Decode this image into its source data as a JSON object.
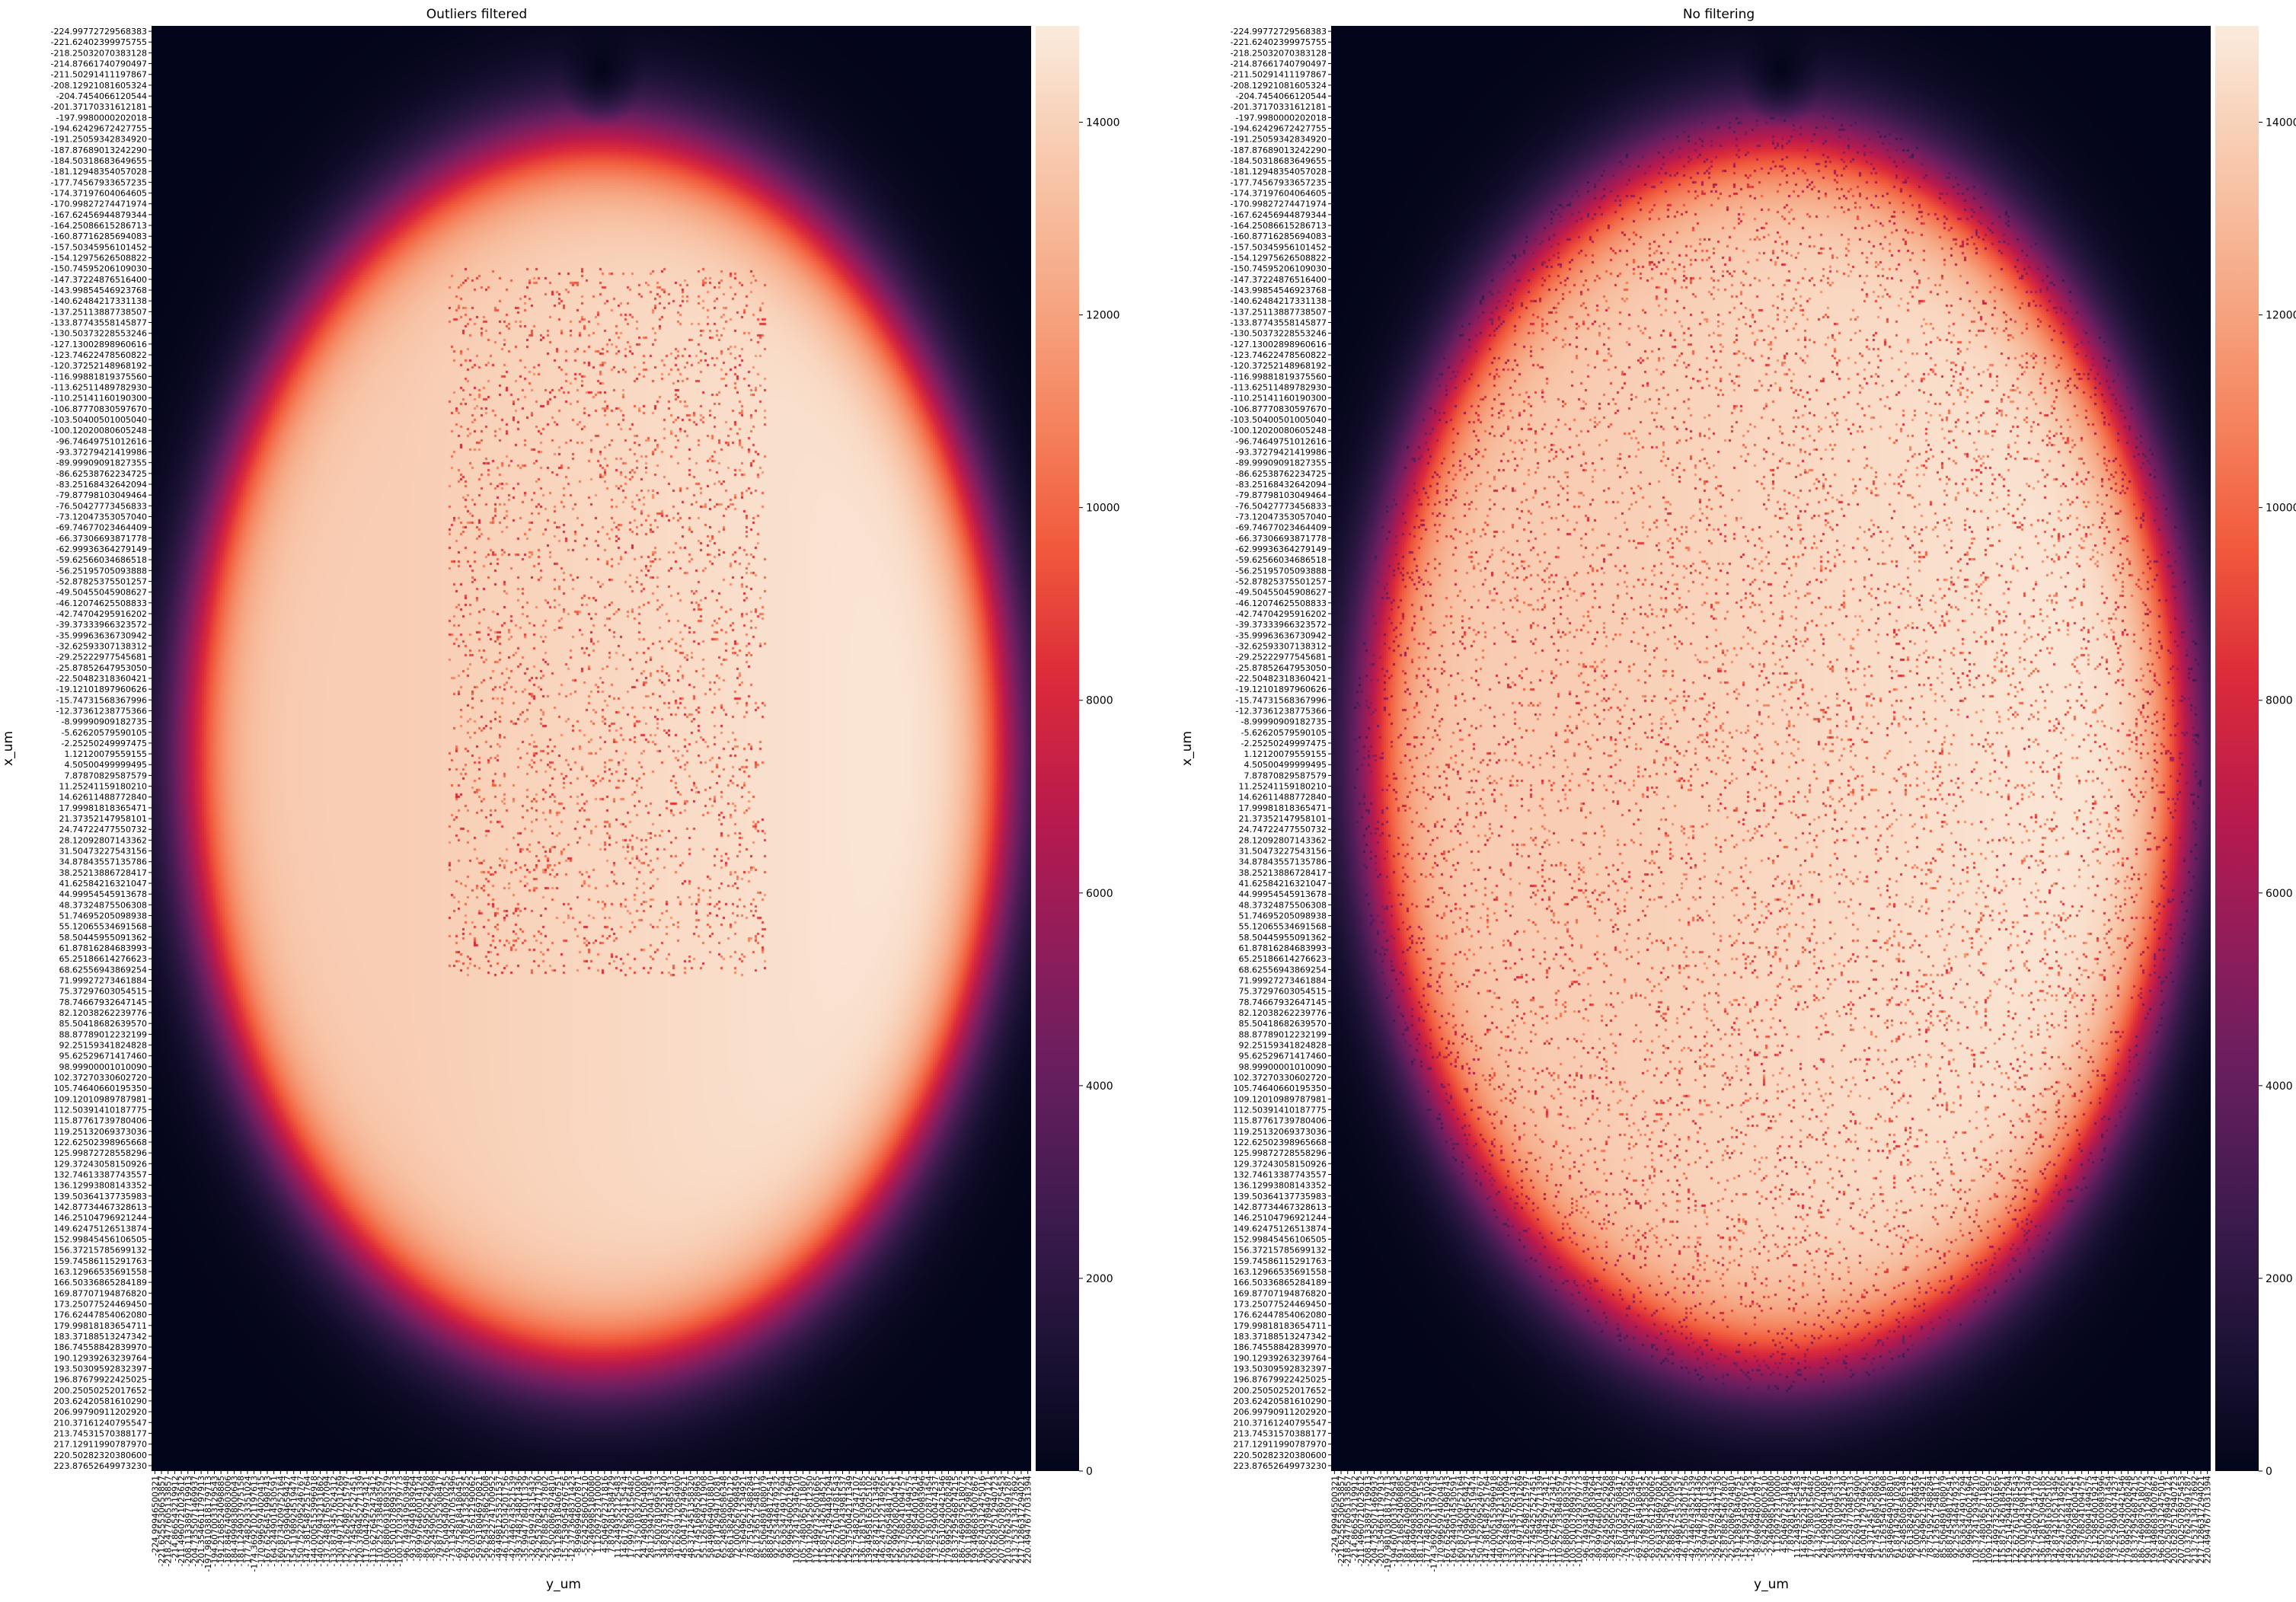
{
  "figure": {
    "colormap": "rocket",
    "colormap_stops": [
      "#03051a",
      "#1e1337",
      "#3e1b4f",
      "#651e5f",
      "#8e1d5b",
      "#b71a4e",
      "#dc2b3a",
      "#f15a3c",
      "#f58560",
      "#f6aa87",
      "#f8c9ae",
      "#faebdd"
    ]
  },
  "chart_data": [
    {
      "type": "heatmap",
      "title": "Outliers filtered",
      "xlabel": "y_um",
      "ylabel": "x_um",
      "y_tick_labels": [
        "-224.99772729568383",
        "-221.62402399975755",
        "-218.25032070383128",
        "-214.87661740790497",
        "-211.50291411197867",
        "-208.12921081605324",
        "-204.7454066120544",
        "-201.37170331612181",
        "-197.9980000202018",
        "-194.62429672427755",
        "-191.25059342834920",
        "-187.87689013242290",
        "-184.50318683649655",
        "-181.12948354057028",
        "-177.74567933657235",
        "-174.37197604064605",
        "-170.99827274471974",
        "-167.62456944879344",
        "-164.25086615286713",
        "-160.87716285694083",
        "-157.50345956101452",
        "-154.12975626508822",
        "-150.74595206109030",
        "-147.37224876516400",
        "-143.99854546923768",
        "-140.62484217331138",
        "-137.25113887738507",
        "-133.87743558145877",
        "-130.50373228553246",
        "-127.13002898960616",
        "-123.74622478560822",
        "-120.37252148968192",
        "-116.99881819375560",
        "-113.62511489782930",
        "-110.25141160190300",
        "-106.87770830597670",
        "-103.50400501005040",
        "-100.12020080605248",
        "-96.74649751012616",
        "-93.37279421419986",
        "-89.99909091827355",
        "-86.62538762234725",
        "-83.25168432642094",
        "-79.87798103049464",
        "-76.50427773456833",
        "-73.12047353057040",
        "-69.74677023464409",
        "-66.37306693871778",
        "-62.99936364279149",
        "-59.62566034686518",
        "-56.25195705093888",
        "-52.87825375501257",
        "-49.50455045908627",
        "-46.12074625508833",
        "-42.74704295916202",
        "-39.37333966323572",
        "-35.99963636730942",
        "-32.62593307138312",
        "-29.25222977545681",
        "-25.87852647953050",
        "-22.50482318360421",
        "-19.12101897960626",
        "-15.74731568367996",
        "-12.37361238775366",
        "-8.99990909182735",
        "-5.62620579590105",
        "-2.25250249997475",
        "1.12120079559155",
        "4.50500499999495",
        "7.87870829587579",
        "11.25241159180210",
        "14.62611488772840",
        "17.99981818365471",
        "21.37352147958101",
        "24.74722477550732",
        "28.12092807143362",
        "31.50473227543156",
        "34.87843557135786",
        "38.25213886728417",
        "41.62584216321047",
        "44.99954545913678",
        "48.37324875506308",
        "51.74695205098938",
        "55.12065534691568",
        "58.50445955091362",
        "61.87816284683993",
        "65.25186614276623",
        "68.62556943869254",
        "71.99927273461884",
        "75.37297603054515",
        "78.74667932647145",
        "82.12038262239776",
        "85.50418682639570",
        "88.87789012232199",
        "92.25159341824828",
        "95.62529671417460",
        "98.99900001010090",
        "102.37270330602720",
        "105.74640660195350",
        "109.12010989787981",
        "112.50391410187775",
        "115.87761739780406",
        "119.25132069373036",
        "122.62502398965668",
        "125.99872728558296",
        "129.37243058150926",
        "132.74613387743557",
        "136.12993808143352",
        "139.50364137735983",
        "142.87734467328613",
        "146.25104796921244",
        "149.62475126513874",
        "152.99845456106505",
        "156.37215785699132",
        "159.74586115291763",
        "163.12966535691558",
        "166.50336865284189",
        "169.87707194876820",
        "173.25077524469450",
        "176.62447854062080",
        "179.99818183654711",
        "183.37188513247342",
        "186.74558842839970",
        "190.12939263239764",
        "193.50309592832397",
        "196.87679922425025",
        "200.25050252017652",
        "203.62420581610290",
        "206.99790911202920",
        "210.37161240795547",
        "213.74531570388177",
        "217.12911990787970",
        "220.50282320380600",
        "223.87652649973230"
      ],
      "x_tick_labels": [
        "-224.99946500321",
        "-221.6255530653857",
        "-218.2477605133857",
        "-214.866543219912",
        "-211.4960721023612",
        "-208.1133897719913",
        "-204.7355071469937",
        "-201.3546611797913",
        "-197.98103818179713",
        "-194.6070033129543",
        "-191.2168524098885",
        "-187.8467409803006",
        "-184.4999838000643",
        "-181.1249037975158",
        "-177.7482933351024",
        "-174.36921021197613",
        "-170.9965974020415",
        "-167.6256451998743",
        "-164.2449014530591",
        "-160.8734209752164",
        "-157.5039904659427",
        "-154.1198924519474",
        "-150.7522095246767",
        "-147.3815487251764",
        "-144.0005153996918",
        "-140.6279432131862",
        "-137.2488176507094",
        "-133.8743457624312",
        "-130.4971217031269",
        "-127.1262987215797",
        "-123.7454257527451",
        "-120.3789452771339",
        "-117.0044297973421",
        "-113.6276452473412",
        "-110.2527338483597",
        "-106.8806931893579",
        "-103.5010378993773",
        "-100.1270329379773",
        "-96.7493419503948",
        "-93.3769491839264",
        "-89.9976460014124",
        "-86.6245950252928",
        "-83.2459050252998",
        "-79.8770352308417",
        "-76.5049540970255",
        "-73.1342017053496",
        "-69.7528184180451",
        "-66.3787513258325",
        "-63.0035612190062",
        "-59.6318046970821",
        "-56.2543758625008",
        "-52.8822741700952",
        "-49.4981253521537",
        "-46.1255034201756",
        "-42.7446743521539",
        "-39.3748734821436",
        "-35.9947784011329",
        "-32.6199742315432",
        "-29.2537824471730",
        "-25.8788254637802",
        "-22.5020862974810",
        "-19.1289318406751",
        "-15.7539054976756",
        "-12.3773648371423",
        "-8.9989946007871",
        "-5.6242586005210",
        "-2.2469985180080",
        "1.1209723710000",
        "4.5046972371816",
        "7.8792815384729",
        "11.2449352125483",
        "14.6176224135474",
        "17.9973802156482",
        "21.3750183270000",
        "24.7490815054081",
        "28.1239420413459",
        "31.5007810995313",
        "34.8783745231240",
        "38.2524770485313",
        "41.6269312054900",
        "45.0041729749621",
        "48.3712451358320",
        "51.7451689528963",
        "55.1263546121908",
        "58.4986649018810",
        "61.8714294710281",
        "65.2485808586348",
        "68.6138249061212",
        "72.0002567998459",
        "75.3649621234921",
        "78.7519527488284",
        "82.1236512548112",
        "85.5064891808079",
        "88.8745498172541",
        "92.2553446479232",
        "95.6363474917294",
        "98.9963406021964",
        "102.3724129346210",
        "105.7480365711807",
        "109.1209125812350",
        "112.4997325001665",
        "115.8751426184521",
        "119.2514294491294",
        "122.6276104781543",
        "126.0031243981537",
        "129.3750042171349",
        "132.7548207347107",
        "136.1281530945185",
        "139.4958163025102",
        "142.8742105213495",
        "146.2475122149265",
        "149.6209548417251",
        "152.9992082004751",
        "156.3768241094757",
        "159.7509041494575",
        "163.1298540019214",
        "166.5026000983996",
        "169.8736102871454",
        "173.2529900474237",
        "176.6310240421546",
        "179.9952920028248",
        "183.3729546874215",
        "186.7469879518072",
        "190.1189031298723",
        "193.4986839007867",
        "196.8740312475016",
        "200.2503789497121",
        "203.6287512940723",
        "207.0025078975453",
        "210.3762432091287",
        "213.7537134773692",
        "217.1286317294021",
        "220.4947677031394"
      ],
      "colorbar": {
        "ticks": [
          0,
          2000,
          4000,
          6000,
          8000,
          10000,
          12000,
          14000
        ],
        "vmin": 0,
        "vmax": 15000
      },
      "distribution": {
        "shape": "ellipse",
        "center_y_um": 0,
        "center_x_um": 0,
        "semi_axis_y_um": 205,
        "semi_axis_x_um": 190,
        "edge_falloff_um": 22,
        "peak": 14800,
        "notch_at_x_um": -212,
        "notch_at_y_um": 2,
        "noise": "clustered-center"
      }
    },
    {
      "type": "heatmap",
      "title": "No filtering",
      "xlabel": "y_um",
      "ylabel": "x_um",
      "y_tick_labels": [
        "-224.99772729568383",
        "-221.62402399975755",
        "-218.25032070383128",
        "-214.87661740790497",
        "-211.50291411197867",
        "-208.12921081605324",
        "-204.7454066120544",
        "-201.37170331612181",
        "-197.9980000202018",
        "-194.62429672427755",
        "-191.25059342834920",
        "-187.87689013242290",
        "-184.50318683649655",
        "-181.12948354057028",
        "-177.74567933657235",
        "-174.37197604064605",
        "-170.99827274471974",
        "-167.62456944879344",
        "-164.25086615286713",
        "-160.87716285694083",
        "-157.50345956101452",
        "-154.12975626508822",
        "-150.74595206109030",
        "-147.37224876516400",
        "-143.99854546923768",
        "-140.62484217331138",
        "-137.25113887738507",
        "-133.87743558145877",
        "-130.50373228553246",
        "-127.13002898960616",
        "-123.74622478560822",
        "-120.37252148968192",
        "-116.99881819375560",
        "-113.62511489782930",
        "-110.25141160190300",
        "-106.87770830597670",
        "-103.50400501005040",
        "-100.12020080605248",
        "-96.74649751012616",
        "-93.37279421419986",
        "-89.99909091827355",
        "-86.62538762234725",
        "-83.25168432642094",
        "-79.87798103049464",
        "-76.50427773456833",
        "-73.12047353057040",
        "-69.74677023464409",
        "-66.37306693871778",
        "-62.99936364279149",
        "-59.62566034686518",
        "-56.25195705093888",
        "-52.87825375501257",
        "-49.50455045908627",
        "-46.12074625508833",
        "-42.74704295916202",
        "-39.37333966323572",
        "-35.99963636730942",
        "-32.62593307138312",
        "-29.25222977545681",
        "-25.87852647953050",
        "-22.50482318360421",
        "-19.12101897960626",
        "-15.74731568367996",
        "-12.37361238775366",
        "-8.99990909182735",
        "-5.62620579590105",
        "-2.25250249997475",
        "1.12120079559155",
        "4.50500499999495",
        "7.87870829587579",
        "11.25241159180210",
        "14.62611488772840",
        "17.99981818365471",
        "21.37352147958101",
        "24.74722477550732",
        "28.12092807143362",
        "31.50473227543156",
        "34.87843557135786",
        "38.25213886728417",
        "41.62584216321047",
        "44.99954545913678",
        "48.37324875506308",
        "51.74695205098938",
        "55.12065534691568",
        "58.50445955091362",
        "61.87816284683993",
        "65.25186614276623",
        "68.62556943869254",
        "71.99927273461884",
        "75.37297603054515",
        "78.74667932647145",
        "82.12038262239776",
        "85.50418682639570",
        "88.87789012232199",
        "92.25159341824828",
        "95.62529671417460",
        "98.99900001010090",
        "102.37270330602720",
        "105.74640660195350",
        "109.12010989787981",
        "112.50391410187775",
        "115.87761739780406",
        "119.25132069373036",
        "122.62502398965668",
        "125.99872728558296",
        "129.37243058150926",
        "132.74613387743557",
        "136.12993808143352",
        "139.50364137735983",
        "142.87734467328613",
        "146.25104796921244",
        "149.62475126513874",
        "152.99845456106505",
        "156.37215785699132",
        "159.74586115291763",
        "163.12966535691558",
        "166.50336865284189",
        "169.87707194876820",
        "173.25077524469450",
        "176.62447854062080",
        "179.99818183654711",
        "183.37188513247342",
        "186.74558842839970",
        "190.12939263239764",
        "193.50309592832397",
        "196.87679922425025",
        "200.25050252017652",
        "203.62420581610290",
        "206.99790911202920",
        "210.37161240795547",
        "213.74531570388177",
        "217.12911990787970",
        "220.50282320380600",
        "223.87652649973230"
      ],
      "x_tick_labels": [
        "-224.99946500321",
        "-221.6255530653857",
        "-218.2477605133857",
        "-214.866543219912",
        "-211.4960721023612",
        "-208.1133897719913",
        "-204.7355071469937",
        "-201.3546611797913",
        "-197.98103818179713",
        "-194.6070033129543",
        "-191.2168524098885",
        "-187.8467409803006",
        "-184.4999838000643",
        "-181.1249037975158",
        "-177.7482933351024",
        "-174.36921021197613",
        "-170.9965974020415",
        "-167.6256451998743",
        "-164.2449014530591",
        "-160.8734209752164",
        "-157.5039904659427",
        "-154.1198924519474",
        "-150.7522095246767",
        "-147.3815487251764",
        "-144.0005153996918",
        "-140.6279432131862",
        "-137.2488176507094",
        "-133.8743457624312",
        "-130.4971217031269",
        "-127.1262987215797",
        "-123.7454257527451",
        "-120.3789452771339",
        "-117.0044297973421",
        "-113.6276452473412",
        "-110.2527338483597",
        "-106.8806931893579",
        "-103.5010378993773",
        "-100.1270329379773",
        "-96.7493419503948",
        "-93.3769491839264",
        "-89.9976460014124",
        "-86.6245950252928",
        "-83.2459050252998",
        "-79.8770352308417",
        "-76.5049540970255",
        "-73.1342017053496",
        "-69.7528184180451",
        "-66.3787513258325",
        "-63.0035612190062",
        "-59.6318046970821",
        "-56.2543758625008",
        "-52.8822741700952",
        "-49.4981253521537",
        "-46.1255034201756",
        "-42.7446743521539",
        "-39.3748734821436",
        "-35.9947784011329",
        "-32.6199742315432",
        "-29.2537824471730",
        "-25.8788254637802",
        "-22.5020862974810",
        "-19.1289318406751",
        "-15.7539054976756",
        "-12.3773648371423",
        "-8.9989946007871",
        "-5.6242586005210",
        "-2.2469985180080",
        "1.1209723710000",
        "4.5046972371816",
        "7.8792815384729",
        "11.2449352125483",
        "14.6176224135474",
        "17.9973802156482",
        "21.3750183270000",
        "24.7490815054081",
        "28.1239420413459",
        "31.5007810995313",
        "34.8783745231240",
        "38.2524770485313",
        "41.6269312054900",
        "45.0041729749621",
        "48.3712451358320",
        "51.7451689528963",
        "55.1263546121908",
        "58.4986649018810",
        "61.8714294710281",
        "65.2485808586348",
        "68.6138249061212",
        "72.0002567998459",
        "75.3649621234921",
        "78.7519527488284",
        "82.1236512548112",
        "85.5064891808079",
        "88.8745498172541",
        "92.2553446479232",
        "95.6363474917294",
        "98.9963406021964",
        "102.3724129346210",
        "105.7480365711807",
        "109.1209125812350",
        "112.4997325001665",
        "115.8751426184521",
        "119.2514294491294",
        "122.6276104781543",
        "126.0031243981537",
        "129.3750042171349",
        "132.7548207347107",
        "136.1281530945185",
        "139.4958163025102",
        "142.8742105213495",
        "146.2475122149265",
        "149.6209548417251",
        "152.9992082004751",
        "156.3768241094757",
        "159.7509041494575",
        "163.1298540019214",
        "166.5026000983996",
        "169.8736102871454",
        "173.2529900474237",
        "176.6310240421546",
        "179.9952920028248",
        "183.3729546874215",
        "186.7469879518072",
        "190.1189031298723",
        "193.4986839007867",
        "196.8740312475016",
        "200.2503789497121",
        "203.6287512940723",
        "207.0025078975453",
        "210.3762432091287",
        "213.7537134773692",
        "217.1286317294021",
        "220.4947677031394"
      ],
      "colorbar": {
        "ticks": [
          0,
          2000,
          4000,
          6000,
          8000,
          10000,
          12000,
          14000
        ],
        "vmin": 0,
        "vmax": 15000
      },
      "distribution": {
        "shape": "ellipse",
        "center_y_um": 0,
        "center_x_um": 0,
        "semi_axis_y_um": 205,
        "semi_axis_x_um": 190,
        "edge_falloff_um": 22,
        "peak": 14800,
        "notch_at_x_um": -212,
        "notch_at_y_um": 2,
        "noise": "uniform"
      }
    }
  ]
}
